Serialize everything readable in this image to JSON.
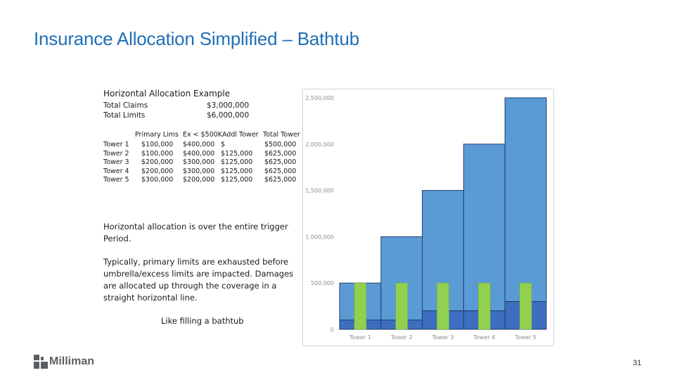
{
  "title": "Insurance Allocation Simplified – Bathtub",
  "example": {
    "heading": "Horizontal Allocation Example",
    "total_claims_label": "Total Claims",
    "total_claims_value": "$3,000,000",
    "total_limits_label": "Total Limits",
    "total_limits_value": "$6,000,000",
    "columns": [
      "Primary Lims",
      "Ex < $500K",
      "Addl Tower",
      "Total Tower"
    ],
    "rows": [
      {
        "tower": "Tower 1",
        "primary": "$100,000",
        "ex": "$400,000",
        "addl": "$",
        "total": "$500,000"
      },
      {
        "tower": "Tower 2",
        "primary": "$100,000",
        "ex": "$400,000",
        "addl": "$125,000",
        "total": "$625,000"
      },
      {
        "tower": "Tower 3",
        "primary": "$200,000",
        "ex": "$300,000",
        "addl": "$125,000",
        "total": "$625,000"
      },
      {
        "tower": "Tower 4",
        "primary": "$200,000",
        "ex": "$300,000",
        "addl": "$125,000",
        "total": "$625,000"
      },
      {
        "tower": "Tower 5",
        "primary": "$300,000",
        "ex": "$200,000",
        "addl": "$125,000",
        "total": "$625,000"
      }
    ]
  },
  "notes": {
    "p1": "Horizontal allocation is over the entire trigger Period.",
    "p2": "Typically, primary limits are exhausted before umbrella/excess limits are impacted.  Damages are allocated up through the coverage in a straight horizontal line.",
    "p3": "Like filling a bathtub"
  },
  "chart_data": {
    "type": "bar",
    "categories": [
      "Tower 1",
      "Tower 2",
      "Tower 3",
      "Tower 4",
      "Tower 5"
    ],
    "series": [
      {
        "values": [
          100000,
          100000,
          200000,
          200000,
          300000
        ],
        "color": "#3d6ebf"
      },
      {
        "values": [
          400000,
          900000,
          1300000,
          1800000,
          2200000
        ],
        "color": "#5b9bd5"
      },
      {
        "values": [
          500000,
          500000,
          500000,
          500000,
          500000
        ],
        "color": "#92d050"
      }
    ],
    "y_ticks": [
      "0",
      "500,000",
      "1,000,000",
      "1,500,000",
      "2,000,000",
      "2,500,000"
    ],
    "ylim": [
      0,
      2500000
    ],
    "grid": false
  },
  "footer": {
    "logo_text": "Milliman",
    "page_number": "31"
  }
}
